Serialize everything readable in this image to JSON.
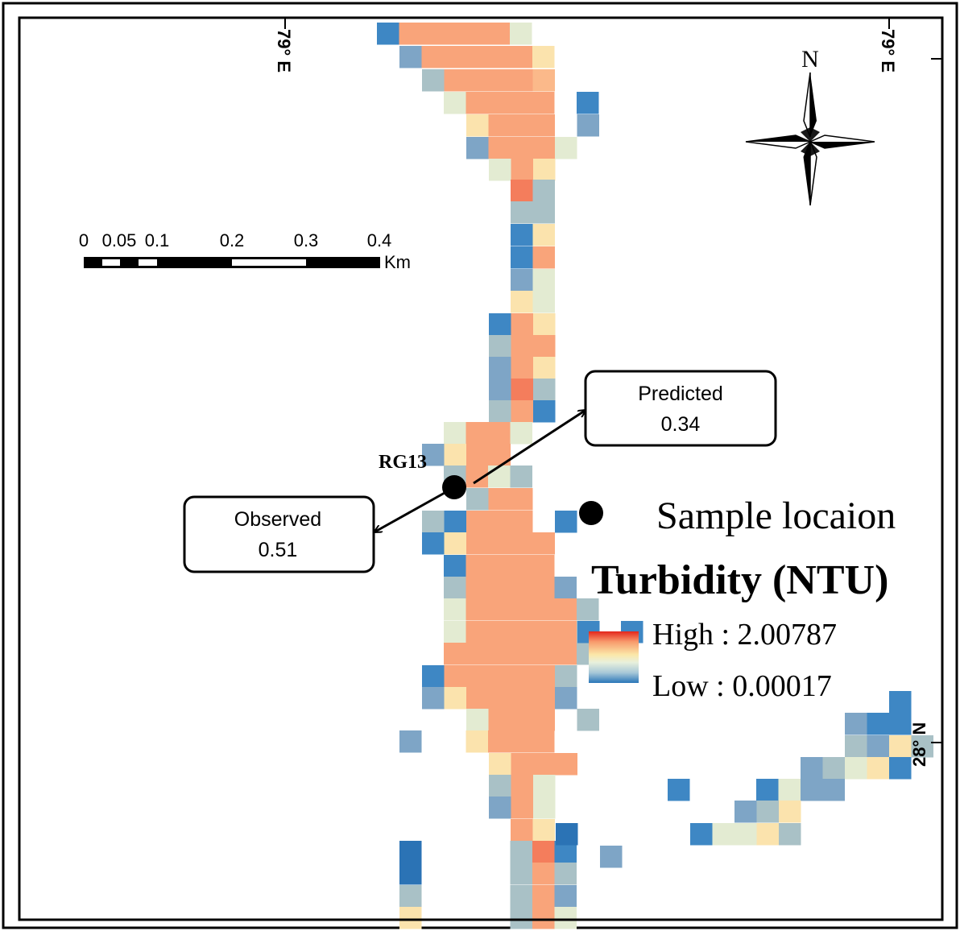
{
  "graticule": {
    "lon_label_1": "79° E",
    "lon_label_2": "79° E",
    "lat_label": "28° N"
  },
  "north_arrow": {
    "label": "N"
  },
  "scale_bar": {
    "ticks": [
      "0",
      "0.05",
      "0.1",
      "0.2",
      "0.3",
      "0.4"
    ],
    "unit": "Km"
  },
  "sample": {
    "site_label": "RG13",
    "observed": {
      "label": "Observed",
      "value": "0.51"
    },
    "predicted": {
      "label": "Predicted",
      "value": "0.34"
    }
  },
  "legend": {
    "sample_label": "Sample locaion",
    "title": "Turbidity (NTU)",
    "high_label": "High : 2.00787",
    "low_label": "Low : 0.00017",
    "ramp_colors": [
      "#e4261c",
      "#f89a6c",
      "#fbe7a8",
      "#e9f0dc",
      "#a8c8d8",
      "#2a76b8"
    ]
  }
}
